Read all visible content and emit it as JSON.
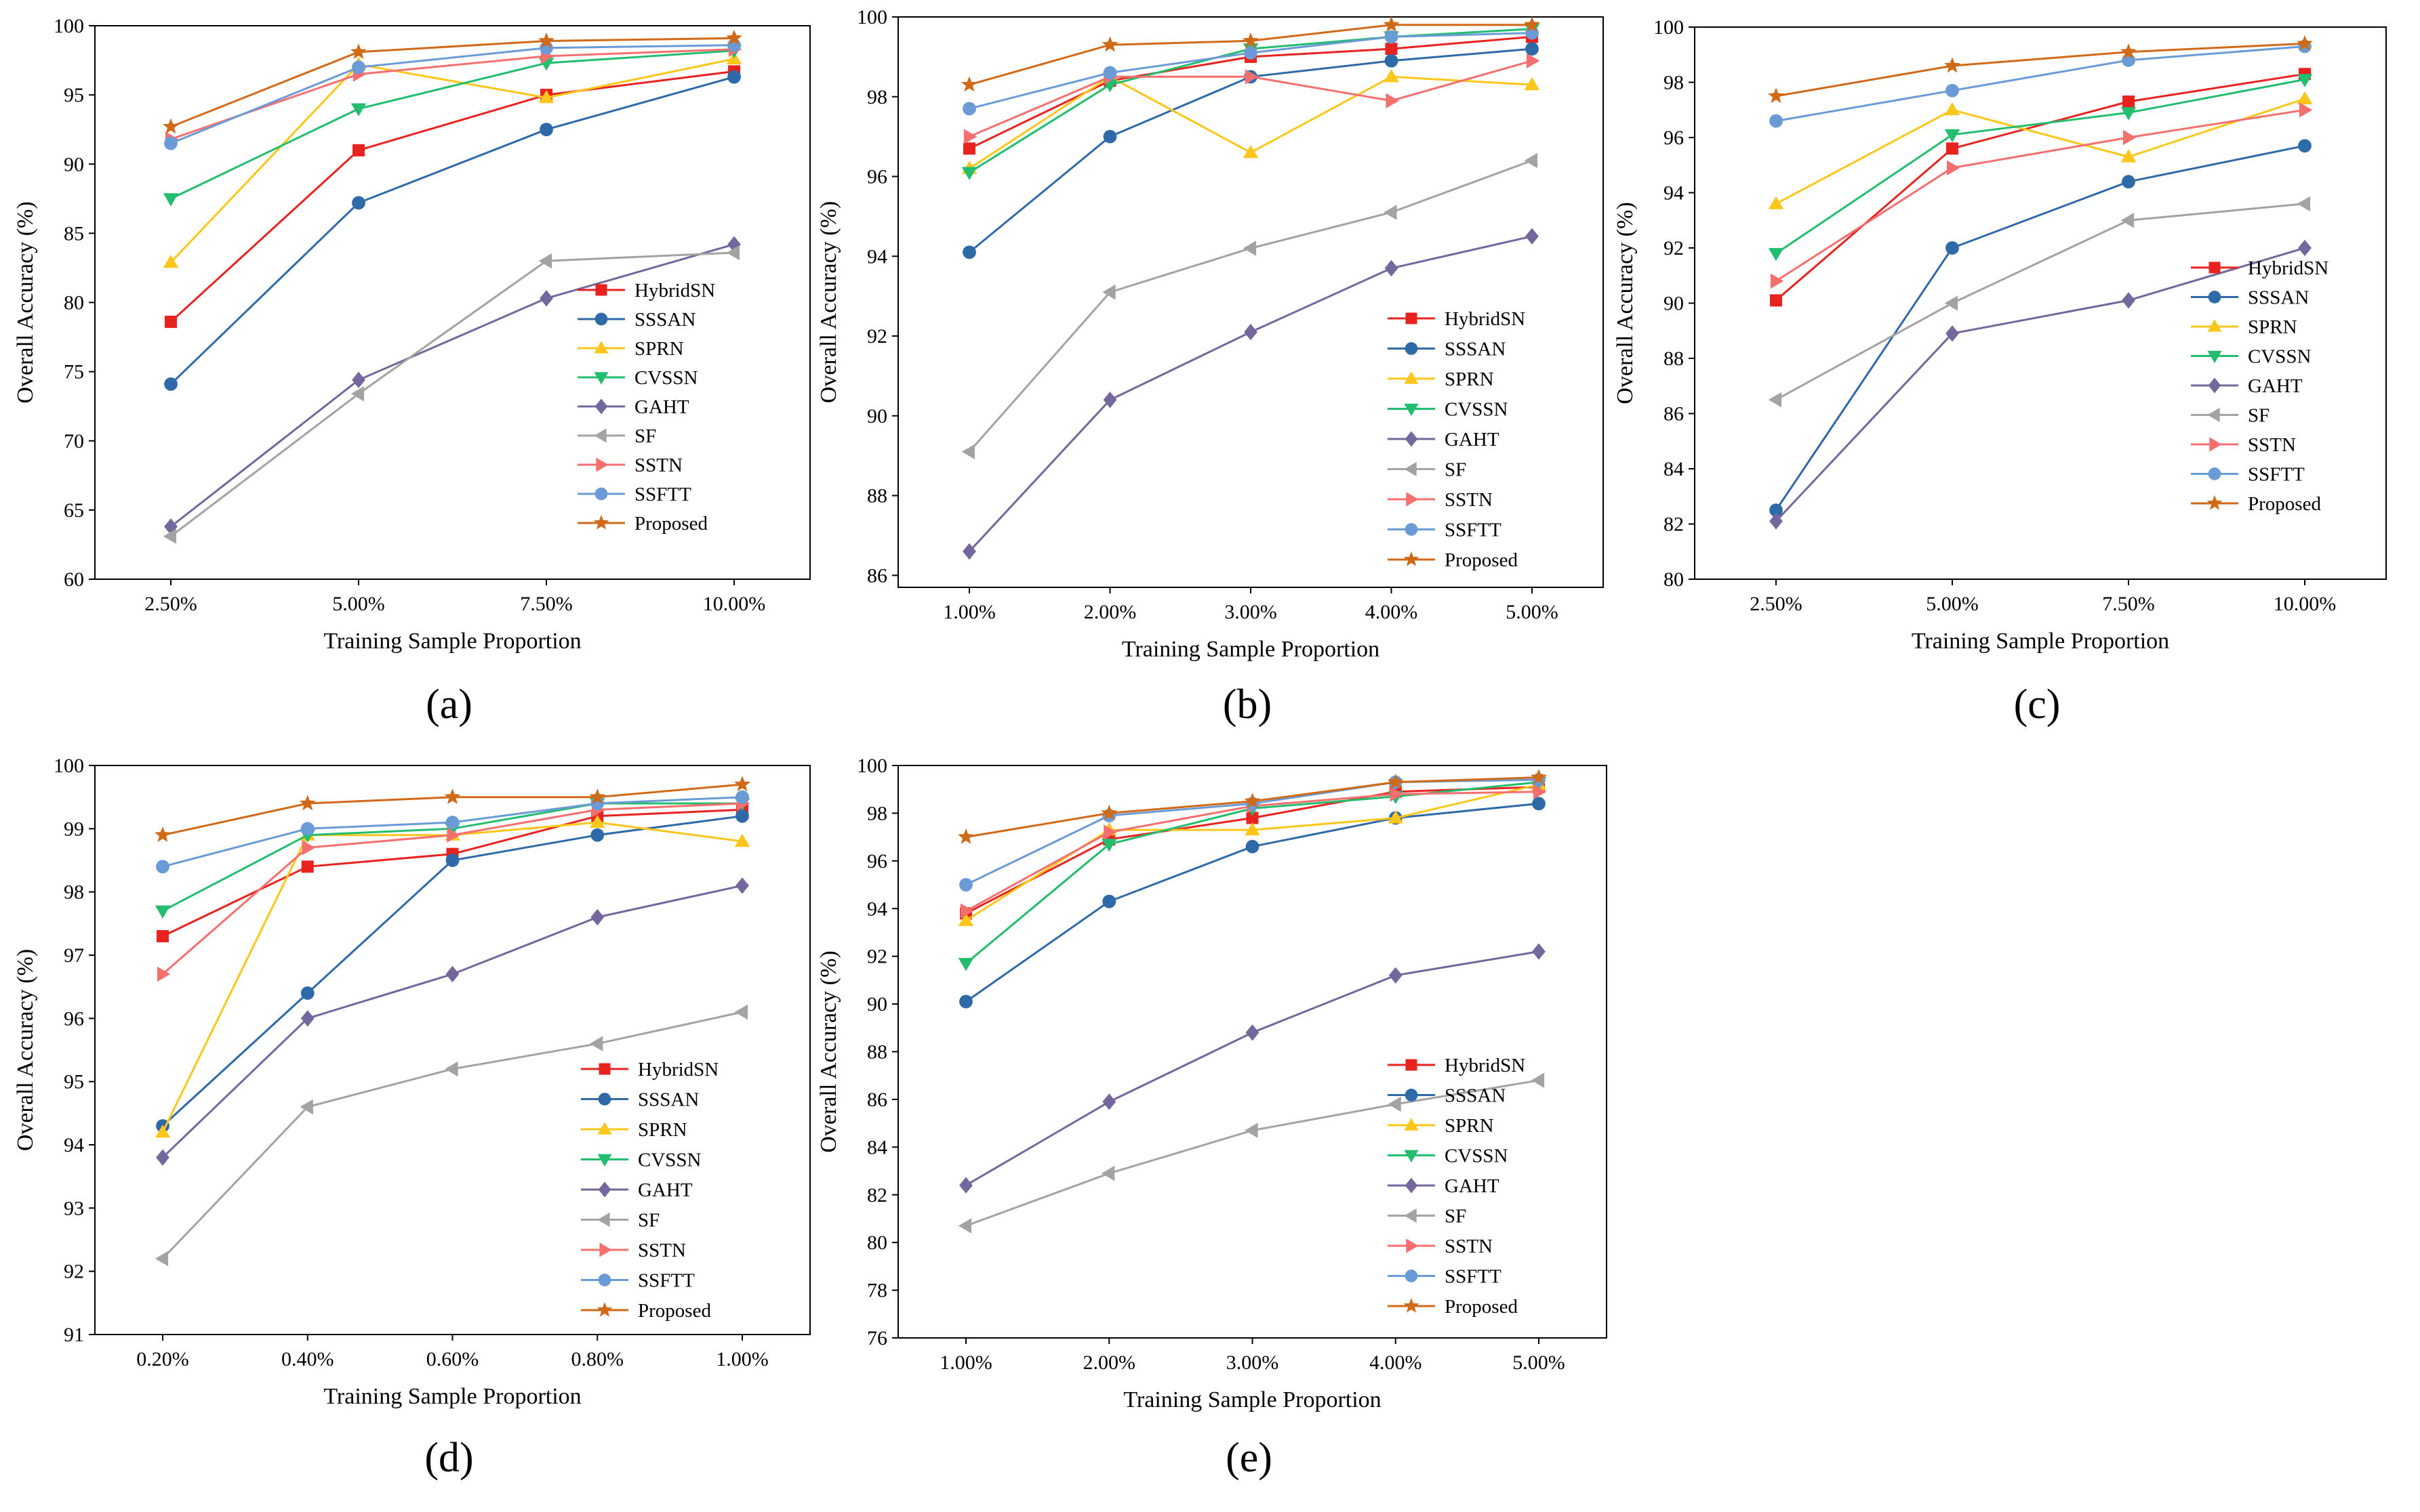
{
  "legend_entries": [
    "HybridSN",
    "SSSAN",
    "SPRN",
    "CVSSN",
    "GAHT",
    "SF",
    "SSTN",
    "SSFTT",
    "Proposed"
  ],
  "series_style": [
    {
      "name": "HybridSN",
      "color": "#e8221f",
      "marker": "square"
    },
    {
      "name": "SSSAN",
      "color": "#2e6aa8",
      "marker": "circle"
    },
    {
      "name": "SPRN",
      "color": "#fcc71a",
      "marker": "triangle-up"
    },
    {
      "name": "CVSSN",
      "color": "#22bd6e",
      "marker": "triangle-down"
    },
    {
      "name": "GAHT",
      "color": "#74679e",
      "marker": "diamond"
    },
    {
      "name": "SF",
      "color": "#a3a3a3",
      "marker": "triangle-left"
    },
    {
      "name": "SSTN",
      "color": "#f66f6f",
      "marker": "triangle-right"
    },
    {
      "name": "SSFTT",
      "color": "#6a9bd7",
      "marker": "circle"
    },
    {
      "name": "Proposed",
      "color": "#d06a18",
      "marker": "star"
    }
  ],
  "chart_data": [
    {
      "panel": "(a)",
      "type": "line",
      "xlabel": "Training Sample Proportion",
      "ylabel": "Overall Accuracy (%)",
      "categories": [
        "2.50%",
        "5.00%",
        "7.50%",
        "10.00%"
      ],
      "ylim": [
        60,
        100
      ],
      "yticks": [
        60,
        65,
        70,
        75,
        80,
        85,
        90,
        95,
        100
      ],
      "legend_position": "bottom-right",
      "series": [
        {
          "name": "HybridSN",
          "values": [
            78.6,
            91.0,
            95.0,
            96.7
          ]
        },
        {
          "name": "SSSAN",
          "values": [
            74.1,
            87.2,
            92.5,
            96.3
          ]
        },
        {
          "name": "SPRN",
          "values": [
            82.9,
            97.2,
            94.8,
            97.6
          ]
        },
        {
          "name": "CVSSN",
          "values": [
            87.5,
            94.0,
            97.3,
            98.2
          ]
        },
        {
          "name": "GAHT",
          "values": [
            63.8,
            74.4,
            80.3,
            84.2
          ]
        },
        {
          "name": "SF",
          "values": [
            63.1,
            73.4,
            83.0,
            83.6
          ]
        },
        {
          "name": "SSTN",
          "values": [
            91.8,
            96.5,
            97.8,
            98.3
          ]
        },
        {
          "name": "SSFTT",
          "values": [
            91.5,
            97.0,
            98.4,
            98.6
          ]
        },
        {
          "name": "Proposed",
          "values": [
            92.7,
            98.1,
            98.9,
            99.1
          ]
        }
      ]
    },
    {
      "panel": "(b)",
      "type": "line",
      "xlabel": "Training Sample Proportion",
      "ylabel": "Overall Accuracy (%)",
      "categories": [
        "1.00%",
        "2.00%",
        "3.00%",
        "4.00%",
        "5.00%"
      ],
      "ylim": [
        85.7,
        100
      ],
      "yticks": [
        86,
        88,
        90,
        92,
        94,
        96,
        98,
        100
      ],
      "legend_position": "bottom-right",
      "series": [
        {
          "name": "HybridSN",
          "values": [
            96.7,
            98.4,
            99.0,
            99.2,
            99.5
          ]
        },
        {
          "name": "SSSAN",
          "values": [
            94.1,
            97.0,
            98.5,
            98.9,
            99.2
          ]
        },
        {
          "name": "SPRN",
          "values": [
            96.2,
            98.5,
            96.6,
            98.5,
            98.3
          ]
        },
        {
          "name": "CVSSN",
          "values": [
            96.1,
            98.3,
            99.2,
            99.5,
            99.7
          ]
        },
        {
          "name": "GAHT",
          "values": [
            86.6,
            90.4,
            92.1,
            93.7,
            94.5
          ]
        },
        {
          "name": "SF",
          "values": [
            89.1,
            93.1,
            94.2,
            95.1,
            96.4
          ]
        },
        {
          "name": "SSTN",
          "values": [
            97.0,
            98.5,
            98.5,
            97.9,
            98.9
          ]
        },
        {
          "name": "SSFTT",
          "values": [
            97.7,
            98.6,
            99.1,
            99.5,
            99.6
          ]
        },
        {
          "name": "Proposed",
          "values": [
            98.3,
            99.3,
            99.4,
            99.8,
            99.8
          ]
        }
      ]
    },
    {
      "panel": "(c)",
      "type": "line",
      "xlabel": "Training Sample Proportion",
      "ylabel": "Overall Accuracy (%)",
      "categories": [
        "2.50%",
        "5.00%",
        "7.50%",
        "10.00%"
      ],
      "ylim": [
        80,
        100
      ],
      "yticks": [
        80,
        82,
        84,
        86,
        88,
        90,
        92,
        94,
        96,
        98,
        100
      ],
      "legend_position": "bottom-right",
      "series": [
        {
          "name": "HybridSN",
          "values": [
            90.1,
            95.6,
            97.3,
            98.3
          ]
        },
        {
          "name": "SSSAN",
          "values": [
            82.5,
            92.0,
            94.4,
            95.7
          ]
        },
        {
          "name": "SPRN",
          "values": [
            93.6,
            97.0,
            95.3,
            97.4
          ]
        },
        {
          "name": "CVSSN",
          "values": [
            91.8,
            96.1,
            96.9,
            98.1
          ]
        },
        {
          "name": "GAHT",
          "values": [
            82.1,
            88.9,
            90.1,
            92.0
          ]
        },
        {
          "name": "SF",
          "values": [
            86.5,
            90.0,
            93.0,
            93.6
          ]
        },
        {
          "name": "SSTN",
          "values": [
            90.8,
            94.9,
            96.0,
            97.0
          ]
        },
        {
          "name": "SSFTT",
          "values": [
            96.6,
            97.7,
            98.8,
            99.3
          ]
        },
        {
          "name": "Proposed",
          "values": [
            97.5,
            98.6,
            99.1,
            99.4
          ]
        }
      ]
    },
    {
      "panel": "(d)",
      "type": "line",
      "xlabel": "Training Sample Proportion",
      "ylabel": "Overall Accuracy (%)",
      "categories": [
        "0.20%",
        "0.40%",
        "0.60%",
        "0.80%",
        "1.00%"
      ],
      "ylim": [
        91,
        100
      ],
      "yticks": [
        91,
        92,
        93,
        94,
        95,
        96,
        97,
        98,
        99,
        100
      ],
      "legend_position": "bottom-right",
      "series": [
        {
          "name": "HybridSN",
          "values": [
            97.3,
            98.4,
            98.6,
            99.2,
            99.3
          ]
        },
        {
          "name": "SSSAN",
          "values": [
            94.3,
            96.4,
            98.5,
            98.9,
            99.2
          ]
        },
        {
          "name": "SPRN",
          "values": [
            94.2,
            98.9,
            98.9,
            99.1,
            98.8
          ]
        },
        {
          "name": "CVSSN",
          "values": [
            97.7,
            98.9,
            99.0,
            99.4,
            99.4
          ]
        },
        {
          "name": "GAHT",
          "values": [
            93.8,
            96.0,
            96.7,
            97.6,
            98.1
          ]
        },
        {
          "name": "SF",
          "values": [
            92.2,
            94.6,
            95.2,
            95.6,
            96.1
          ]
        },
        {
          "name": "SSTN",
          "values": [
            96.7,
            98.7,
            98.9,
            99.3,
            99.4
          ]
        },
        {
          "name": "SSFTT",
          "values": [
            98.4,
            99.0,
            99.1,
            99.4,
            99.5
          ]
        },
        {
          "name": "Proposed",
          "values": [
            98.9,
            99.4,
            99.5,
            99.5,
            99.7
          ]
        }
      ]
    },
    {
      "panel": "(e)",
      "type": "line",
      "xlabel": "Training Sample Proportion",
      "ylabel": "Overall Accuracy (%)",
      "categories": [
        "1.00%",
        "2.00%",
        "3.00%",
        "4.00%",
        "5.00%"
      ],
      "ylim": [
        76,
        100
      ],
      "yticks": [
        76,
        78,
        80,
        82,
        84,
        86,
        88,
        90,
        92,
        94,
        96,
        98,
        100
      ],
      "legend_position": "bottom-right",
      "series": [
        {
          "name": "HybridSN",
          "values": [
            93.8,
            96.9,
            97.8,
            98.9,
            99.1
          ]
        },
        {
          "name": "SSSAN",
          "values": [
            90.1,
            94.3,
            96.6,
            97.8,
            98.4
          ]
        },
        {
          "name": "SPRN",
          "values": [
            93.5,
            97.3,
            97.3,
            97.8,
            99.2
          ]
        },
        {
          "name": "CVSSN",
          "values": [
            91.7,
            96.7,
            98.2,
            98.7,
            99.3
          ]
        },
        {
          "name": "GAHT",
          "values": [
            82.4,
            85.9,
            88.8,
            91.2,
            92.2
          ]
        },
        {
          "name": "SF",
          "values": [
            80.7,
            82.9,
            84.7,
            85.8,
            86.8
          ]
        },
        {
          "name": "SSTN",
          "values": [
            93.9,
            97.2,
            98.3,
            98.8,
            98.9
          ]
        },
        {
          "name": "SSFTT",
          "values": [
            95.0,
            97.9,
            98.4,
            99.3,
            99.4
          ]
        },
        {
          "name": "Proposed",
          "values": [
            97.0,
            98.0,
            98.5,
            99.3,
            99.5
          ]
        }
      ]
    }
  ]
}
